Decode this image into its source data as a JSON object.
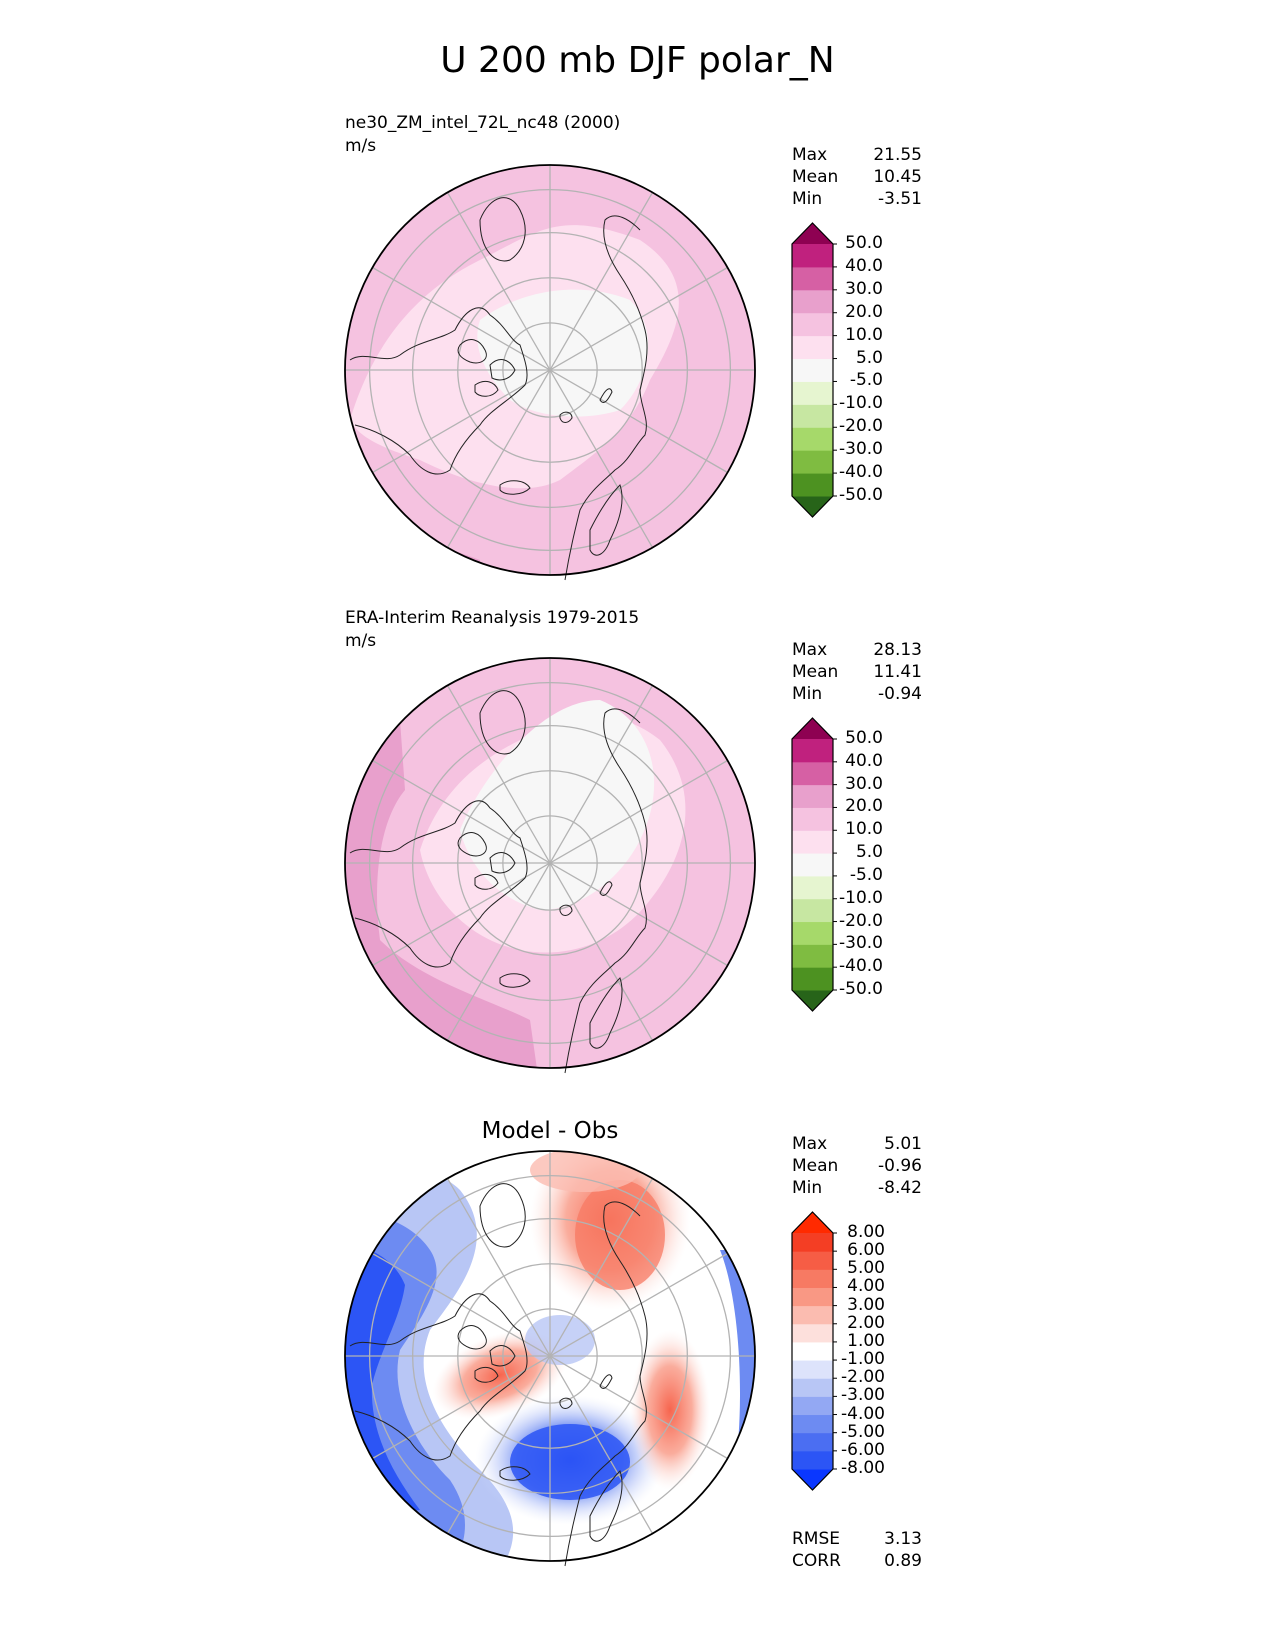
{
  "figure": {
    "title": "U 200 mb DJF polar_N"
  },
  "panels": [
    {
      "name": "test",
      "title": "ne30_ZM_intel_72L_nc48 (2000)",
      "units": "m/s",
      "stats": [
        {
          "label": "Max",
          "value": "21.55"
        },
        {
          "label": "Mean",
          "value": "10.45"
        },
        {
          "label": "Min",
          "value": "-3.51"
        }
      ],
      "colorbar": {
        "colors": [
          "#276419",
          "#4d9221",
          "#7fbc41",
          "#a6d96a",
          "#c7e7a2",
          "#e6f5d0",
          "#f7f7f7",
          "#fde0ef",
          "#f5c2e0",
          "#e8a0cc",
          "#d660a4",
          "#c0217e",
          "#8e0152"
        ],
        "labels": [
          "-50.0",
          "-40.0",
          "-30.0",
          "-20.0",
          "-10.0",
          "-5.0",
          "5.0",
          "10.0",
          "20.0",
          "30.0",
          "40.0",
          "50.0"
        ]
      }
    },
    {
      "name": "reference",
      "title": "ERA-Interim Reanalysis 1979-2015",
      "units": "m/s",
      "stats": [
        {
          "label": "Max",
          "value": "28.13"
        },
        {
          "label": "Mean",
          "value": "11.41"
        },
        {
          "label": "Min",
          "value": "-0.94"
        }
      ],
      "colorbar": {
        "colors": [
          "#276419",
          "#4d9221",
          "#7fbc41",
          "#a6d96a",
          "#c7e7a2",
          "#e6f5d0",
          "#f7f7f7",
          "#fde0ef",
          "#f5c2e0",
          "#e8a0cc",
          "#d660a4",
          "#c0217e",
          "#8e0152"
        ],
        "labels": [
          "-50.0",
          "-40.0",
          "-30.0",
          "-20.0",
          "-10.0",
          "-5.0",
          "5.0",
          "10.0",
          "20.0",
          "30.0",
          "40.0",
          "50.0"
        ]
      }
    },
    {
      "name": "difference",
      "title": "Model - Obs",
      "stats": [
        {
          "label": "Max",
          "value": "5.01"
        },
        {
          "label": "Mean",
          "value": "-0.96"
        },
        {
          "label": "Min",
          "value": "-8.42"
        }
      ],
      "metrics": [
        {
          "label": "RMSE",
          "value": "3.13"
        },
        {
          "label": "CORR",
          "value": "0.89"
        }
      ],
      "colorbar": {
        "colors": [
          "#0a37ff",
          "#2c55f5",
          "#4b6ef2",
          "#6d8bf2",
          "#93a8f3",
          "#b8c6f5",
          "#dde3fb",
          "#ffffff",
          "#fde0dc",
          "#fbbcb0",
          "#f99884",
          "#f77a63",
          "#f65d45",
          "#f43e24",
          "#ff2a00"
        ],
        "labels": [
          "-8.00",
          "-6.00",
          "-5.00",
          "-4.00",
          "-3.00",
          "-2.00",
          "-1.00",
          "1.00",
          "2.00",
          "3.00",
          "4.00",
          "5.00",
          "6.00",
          "8.00"
        ]
      }
    }
  ],
  "chart_data": [
    {
      "type": "heatmap",
      "projection": "polar_N",
      "title": "ne30_ZM_intel_72L_nc48 (2000)",
      "units": "m/s",
      "field": "U 200 mb DJF",
      "stats": {
        "max": 21.55,
        "mean": 10.45,
        "min": -3.51
      },
      "contour_levels": [
        -50,
        -40,
        -30,
        -20,
        -10,
        -5,
        5,
        10,
        20,
        30,
        40,
        50
      ],
      "colormap": "PiYG_r"
    },
    {
      "type": "heatmap",
      "projection": "polar_N",
      "title": "ERA-Interim Reanalysis 1979-2015",
      "units": "m/s",
      "field": "U 200 mb DJF",
      "stats": {
        "max": 28.13,
        "mean": 11.41,
        "min": -0.94
      },
      "contour_levels": [
        -50,
        -40,
        -30,
        -20,
        -10,
        -5,
        5,
        10,
        20,
        30,
        40,
        50
      ],
      "colormap": "PiYG_r"
    },
    {
      "type": "heatmap",
      "projection": "polar_N",
      "title": "Model - Obs",
      "field": "U 200 mb DJF difference",
      "stats": {
        "max": 5.01,
        "mean": -0.96,
        "min": -8.42
      },
      "rmse": 3.13,
      "corr": 0.89,
      "contour_levels": [
        -8,
        -6,
        -5,
        -4,
        -3,
        -2,
        -1,
        1,
        2,
        3,
        4,
        5,
        6,
        8
      ],
      "colormap": "bwr"
    }
  ]
}
